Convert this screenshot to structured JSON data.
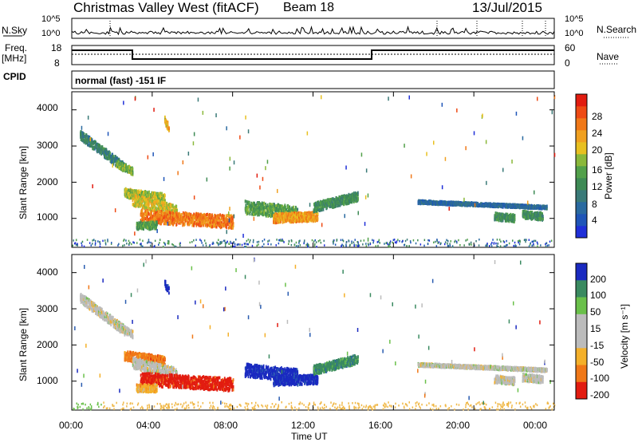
{
  "header": {
    "station": "Christmas Valley West (fitACF)",
    "beam": "Beam 18",
    "date": "13/Jul/2015"
  },
  "noise_panel": {
    "left_label": "N.Sky",
    "right_label": "N.Search",
    "y_ticks": [
      "10^5",
      "10^0"
    ]
  },
  "freq_panel": {
    "left_label": "Freq.",
    "left_unit": "[MHz]",
    "left_ticks": [
      "18",
      "8"
    ],
    "right_label": "Nave",
    "right_ticks": [
      "60",
      "0"
    ]
  },
  "cpid_panel": {
    "label": "CPID",
    "text": "normal (fast) -151 IF"
  },
  "colors": {
    "power": [
      "#1f2fd8",
      "#1f55b8",
      "#2a6aa0",
      "#3a7a78",
      "#3e8a55",
      "#52a04a",
      "#8ab83a",
      "#e8c020",
      "#f0a020",
      "#f07818",
      "#ee4a14",
      "#e21c10"
    ],
    "velocity": [
      "#e21c10",
      "#f07818",
      "#f4b02a",
      "#bcbcbc",
      "#6ac04a",
      "#3a8a60",
      "#2a5cb0",
      "#1a2ac0"
    ],
    "low_range_noise": "#f0b848"
  },
  "chart_data": [
    {
      "type": "heatmap",
      "name": "power",
      "xlabel": "",
      "ylabel": "Slant Range [km]",
      "xlim": [
        0,
        24
      ],
      "ylim": [
        200,
        4500
      ],
      "y_ticks": [
        "4000",
        "3000",
        "2000",
        "1000"
      ],
      "colorbar": {
        "label": "Power [dB]",
        "ticks": [
          "28",
          "24",
          "20",
          "16",
          "12",
          "8",
          "4"
        ],
        "range": [
          0,
          32
        ]
      },
      "echo_regions": [
        {
          "t0": 0.4,
          "t1": 2.6,
          "r_start": 3300,
          "r_end": 2400,
          "width_km": 250,
          "value": 10
        },
        {
          "t0": 2.2,
          "t1": 3.0,
          "r_start": 2500,
          "r_end": 2300,
          "width_km": 200,
          "value": 16
        },
        {
          "t0": 2.6,
          "t1": 4.6,
          "r_start": 1700,
          "r_end": 1550,
          "width_km": 250,
          "value": 18
        },
        {
          "t0": 3.0,
          "t1": 5.2,
          "r_start": 1500,
          "r_end": 1200,
          "width_km": 300,
          "value": 20
        },
        {
          "t0": 3.4,
          "t1": 8.0,
          "r_start": 1050,
          "r_end": 900,
          "width_km": 350,
          "value": 26
        },
        {
          "t0": 3.2,
          "t1": 4.2,
          "r_start": 800,
          "r_end": 800,
          "width_km": 200,
          "value": 14
        },
        {
          "t0": 4.6,
          "t1": 4.8,
          "r_start": 3700,
          "r_end": 3500,
          "width_km": 200,
          "value": 22
        },
        {
          "t0": 8.6,
          "t1": 11.2,
          "r_start": 1300,
          "r_end": 1150,
          "width_km": 350,
          "value": 14
        },
        {
          "t0": 10.0,
          "t1": 12.2,
          "r_start": 1000,
          "r_end": 1050,
          "width_km": 250,
          "value": 24
        },
        {
          "t0": 12.0,
          "t1": 14.2,
          "r_start": 1300,
          "r_end": 1600,
          "width_km": 250,
          "value": 12
        },
        {
          "t0": 17.2,
          "t1": 23.6,
          "r_start": 1450,
          "r_end": 1300,
          "width_km": 80,
          "value": 6
        },
        {
          "t0": 21.0,
          "t1": 22.0,
          "r_start": 1050,
          "r_end": 1000,
          "width_km": 200,
          "value": 12
        },
        {
          "t0": 22.4,
          "t1": 23.4,
          "r_start": 1100,
          "r_end": 1050,
          "width_km": 200,
          "value": 12
        }
      ]
    },
    {
      "type": "heatmap",
      "name": "velocity",
      "xlabel": "Time UT",
      "ylabel": "Slant Range [km]",
      "xlim": [
        0,
        24
      ],
      "ylim": [
        200,
        4500
      ],
      "x_ticks": [
        "00:00",
        "04:00",
        "08:00",
        "12:00",
        "16:00",
        "20:00",
        "00:00"
      ],
      "y_ticks": [
        "4000",
        "3000",
        "2000",
        "1000"
      ],
      "colorbar": {
        "label": "Velocity [m s⁻¹]",
        "ticks": [
          "200",
          "100",
          "50",
          "15",
          "-15",
          "-50",
          "-100",
          "-200"
        ]
      },
      "echo_regions": [
        {
          "t0": 0.4,
          "t1": 2.6,
          "r_start": 3300,
          "r_end": 2400,
          "width_km": 250,
          "value": "15"
        },
        {
          "t0": 2.2,
          "t1": 3.0,
          "r_start": 2500,
          "r_end": 2300,
          "width_km": 200,
          "value": "15"
        },
        {
          "t0": 2.6,
          "t1": 4.6,
          "r_start": 1700,
          "r_end": 1550,
          "width_km": 250,
          "value": "-100"
        },
        {
          "t0": 3.0,
          "t1": 5.2,
          "r_start": 1500,
          "r_end": 1200,
          "width_km": 300,
          "value": "15"
        },
        {
          "t0": 3.4,
          "t1": 8.0,
          "r_start": 1050,
          "r_end": 900,
          "width_km": 350,
          "value": "-200"
        },
        {
          "t0": 3.2,
          "t1": 4.2,
          "r_start": 800,
          "r_end": 800,
          "width_km": 200,
          "value": "-50"
        },
        {
          "t0": 4.6,
          "t1": 4.8,
          "r_start": 3700,
          "r_end": 3500,
          "width_km": 200,
          "value": "200"
        },
        {
          "t0": 8.6,
          "t1": 11.2,
          "r_start": 1300,
          "r_end": 1150,
          "width_km": 350,
          "value": "200"
        },
        {
          "t0": 10.0,
          "t1": 12.2,
          "r_start": 1000,
          "r_end": 1050,
          "width_km": 250,
          "value": "200"
        },
        {
          "t0": 12.0,
          "t1": 14.2,
          "r_start": 1300,
          "r_end": 1600,
          "width_km": 250,
          "value": "100"
        },
        {
          "t0": 17.2,
          "t1": 23.6,
          "r_start": 1450,
          "r_end": 1300,
          "width_km": 80,
          "value": "15"
        },
        {
          "t0": 21.0,
          "t1": 22.0,
          "r_start": 1050,
          "r_end": 1000,
          "width_km": 200,
          "value": "15"
        },
        {
          "t0": 22.4,
          "t1": 23.4,
          "r_start": 1100,
          "r_end": 1050,
          "width_km": 200,
          "value": "15"
        }
      ]
    }
  ]
}
